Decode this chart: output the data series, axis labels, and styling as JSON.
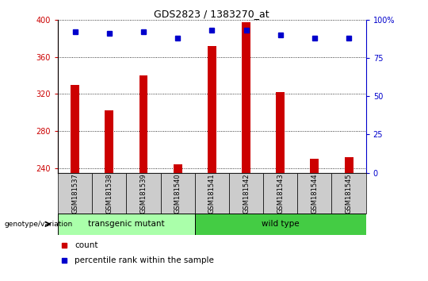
{
  "title": "GDS2823 / 1383270_at",
  "samples": [
    "GSM181537",
    "GSM181538",
    "GSM181539",
    "GSM181540",
    "GSM181541",
    "GSM181542",
    "GSM181543",
    "GSM181544",
    "GSM181545"
  ],
  "counts": [
    330,
    302,
    340,
    244,
    372,
    397,
    322,
    250,
    252
  ],
  "percentile_ranks": [
    92,
    91,
    92,
    88,
    93,
    93,
    90,
    88,
    88
  ],
  "y_min": 235,
  "y_max": 400,
  "y_ticks": [
    240,
    280,
    320,
    360,
    400
  ],
  "y2_ticks": [
    0,
    25,
    50,
    75,
    100
  ],
  "bar_color": "#cc0000",
  "dot_color": "#0000cc",
  "transgenic_mutant_count": 4,
  "wild_type_count": 5,
  "transgenic_label": "transgenic mutant",
  "wild_type_label": "wild type",
  "genotype_label": "genotype/variation",
  "legend_count_label": "count",
  "legend_pct_label": "percentile rank within the sample",
  "transgenic_color": "#aaffaa",
  "wild_type_color": "#44cc44",
  "bar_color_left": "#cc0000",
  "bar_color_right": "#0000cc",
  "bar_width": 0.25
}
